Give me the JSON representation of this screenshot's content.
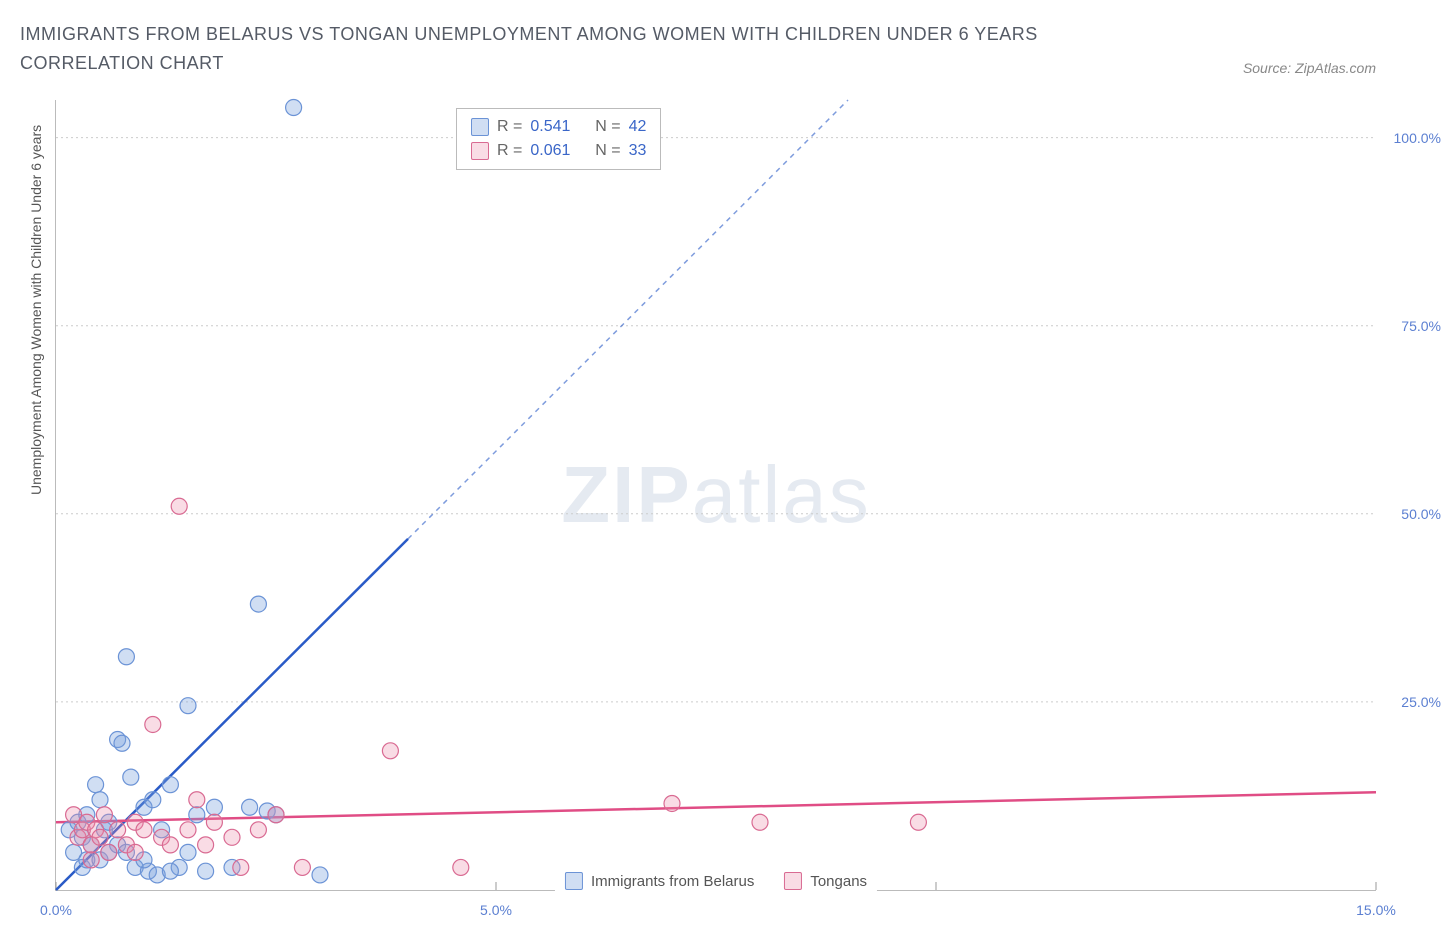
{
  "title": "IMMIGRANTS FROM BELARUS VS TONGAN UNEMPLOYMENT AMONG WOMEN WITH CHILDREN UNDER 6 YEARS CORRELATION CHART",
  "source": "Source: ZipAtlas.com",
  "watermark_zip": "ZIP",
  "watermark_atlas": "atlas",
  "y_axis_title": "Unemployment Among Women with Children Under 6 years",
  "chart": {
    "type": "scatter",
    "xlim": [
      0,
      15
    ],
    "ylim": [
      0,
      105
    ],
    "xticks": [
      0,
      5,
      10,
      15
    ],
    "xtick_labels": [
      "0.0%",
      "5.0%",
      "",
      "15.0%"
    ],
    "yticks": [
      25,
      50,
      75,
      100
    ],
    "ytick_labels": [
      "25.0%",
      "50.0%",
      "75.0%",
      "100.0%"
    ],
    "grid_color": "#cccccc",
    "background": "#ffffff",
    "series": [
      {
        "name": "Immigrants from Belarus",
        "fill": "rgba(120,160,220,0.35)",
        "stroke": "#6b93d6",
        "r_value": "0.541",
        "n_value": "42",
        "trend": {
          "x1": 0,
          "y1": 0,
          "x2": 9.0,
          "y2": 105,
          "solid_until_x": 4.0,
          "stroke": "#2a5bc7"
        },
        "points": [
          [
            0.15,
            8
          ],
          [
            0.2,
            5
          ],
          [
            0.25,
            9
          ],
          [
            0.3,
            7
          ],
          [
            0.35,
            10
          ],
          [
            0.4,
            6
          ],
          [
            0.45,
            14
          ],
          [
            0.5,
            12
          ],
          [
            0.55,
            8
          ],
          [
            0.6,
            9
          ],
          [
            0.7,
            20
          ],
          [
            0.75,
            19.5
          ],
          [
            0.8,
            31
          ],
          [
            0.85,
            15
          ],
          [
            0.9,
            3
          ],
          [
            1.0,
            11
          ],
          [
            1.05,
            2.5
          ],
          [
            1.1,
            12
          ],
          [
            1.15,
            2
          ],
          [
            1.2,
            8
          ],
          [
            1.3,
            14
          ],
          [
            1.4,
            3
          ],
          [
            1.5,
            24.5
          ],
          [
            1.6,
            10
          ],
          [
            1.7,
            2.5
          ],
          [
            1.8,
            11
          ],
          [
            2.0,
            3
          ],
          [
            2.2,
            11
          ],
          [
            2.3,
            38
          ],
          [
            2.4,
            10.5
          ],
          [
            2.5,
            10
          ],
          [
            2.7,
            104
          ],
          [
            3.0,
            2
          ],
          [
            0.3,
            3
          ],
          [
            0.35,
            4
          ],
          [
            0.5,
            4
          ],
          [
            0.6,
            5
          ],
          [
            0.7,
            6
          ],
          [
            0.8,
            5
          ],
          [
            1.0,
            4
          ],
          [
            1.3,
            2.5
          ],
          [
            1.5,
            5
          ]
        ]
      },
      {
        "name": "Tongans",
        "fill": "rgba(235,140,170,0.30)",
        "stroke": "#d96a92",
        "r_value": "0.061",
        "n_value": "33",
        "trend": {
          "x1": 0,
          "y1": 9.0,
          "x2": 15,
          "y2": 13.0,
          "solid_until_x": 15,
          "stroke": "#e04d85"
        },
        "points": [
          [
            0.2,
            10
          ],
          [
            0.25,
            7
          ],
          [
            0.3,
            8
          ],
          [
            0.35,
            9
          ],
          [
            0.4,
            6
          ],
          [
            0.45,
            8
          ],
          [
            0.5,
            7
          ],
          [
            0.55,
            10
          ],
          [
            0.6,
            5
          ],
          [
            0.7,
            8
          ],
          [
            0.8,
            6
          ],
          [
            0.9,
            9
          ],
          [
            1.0,
            8
          ],
          [
            1.1,
            22
          ],
          [
            1.2,
            7
          ],
          [
            1.3,
            6
          ],
          [
            1.4,
            51
          ],
          [
            1.5,
            8
          ],
          [
            1.6,
            12
          ],
          [
            1.7,
            6
          ],
          [
            1.8,
            9
          ],
          [
            2.0,
            7
          ],
          [
            2.1,
            3
          ],
          [
            2.3,
            8
          ],
          [
            2.5,
            10
          ],
          [
            2.8,
            3
          ],
          [
            3.8,
            18.5
          ],
          [
            4.6,
            3
          ],
          [
            7.0,
            11.5
          ],
          [
            8.0,
            9
          ],
          [
            9.8,
            9
          ],
          [
            0.4,
            4
          ],
          [
            0.9,
            5
          ]
        ]
      }
    ]
  },
  "legend": {
    "series1_label": "Immigrants from Belarus",
    "series2_label": "Tongans"
  },
  "stats_labels": {
    "r": "R =",
    "n": "N ="
  }
}
